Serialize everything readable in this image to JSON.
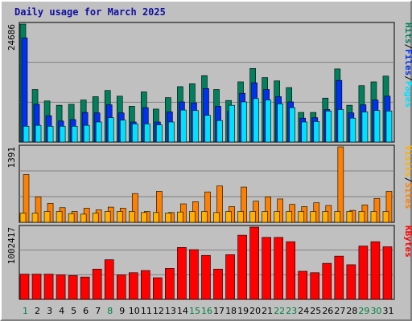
{
  "title": "Daily usage for March 2025",
  "colors": {
    "hits": "#00805c",
    "files": "#0030f0",
    "pages": "#00e0ff",
    "visits": "#ffb000",
    "sites": "#ff8000",
    "kbytes": "#ff0000",
    "weekday_label": "#000000",
    "weekend_label": "#008040",
    "separator": "#000000"
  },
  "chart_data": [
    {
      "type": "bar",
      "max_label": "24686",
      "ylim": [
        0,
        24686
      ],
      "right_labels": [
        {
          "text": "Hits",
          "color_key": "hits"
        },
        {
          "text": "/",
          "color_key": "separator"
        },
        {
          "text": "Files",
          "color_key": "files"
        },
        {
          "text": "/",
          "color_key": "separator"
        },
        {
          "text": "Pages",
          "color_key": "pages"
        }
      ],
      "categories": [
        "1",
        "2",
        "3",
        "4",
        "5",
        "6",
        "7",
        "8",
        "9",
        "10",
        "11",
        "12",
        "13",
        "14",
        "15",
        "16",
        "17",
        "18",
        "19",
        "20",
        "21",
        "22",
        "23",
        "24",
        "25",
        "26",
        "27",
        "28",
        "29",
        "30",
        "31"
      ],
      "series": [
        {
          "name": "Hits",
          "color_key": "hits",
          "values": [
            24686,
            11000,
            8600,
            7700,
            7900,
            8800,
            9500,
            10800,
            9600,
            7500,
            10500,
            6900,
            9300,
            11600,
            12200,
            13900,
            11000,
            8700,
            12600,
            15400,
            13500,
            12800,
            11400,
            6200,
            6200,
            9200,
            15300,
            7700,
            11800,
            12600,
            13800
          ]
        },
        {
          "name": "Files",
          "color_key": "files",
          "values": [
            21800,
            7900,
            5500,
            4400,
            4700,
            6200,
            6100,
            7800,
            6100,
            4200,
            7200,
            4200,
            6300,
            8400,
            8200,
            11200,
            7500,
            6400,
            10200,
            12400,
            11000,
            9500,
            8400,
            5000,
            5100,
            6800,
            12900,
            6100,
            7800,
            8800,
            9600
          ]
        },
        {
          "name": "Pages",
          "color_key": "pages",
          "values": [
            3300,
            3500,
            3300,
            3300,
            3300,
            3500,
            4200,
            5100,
            4600,
            3800,
            3800,
            3600,
            4200,
            6700,
            6600,
            5600,
            4500,
            7700,
            8400,
            9100,
            8800,
            8000,
            7200,
            4200,
            4300,
            6500,
            6800,
            5000,
            6300,
            6600,
            6500
          ]
        }
      ]
    },
    {
      "type": "bar",
      "max_label": "1391",
      "ylim": [
        0,
        1391
      ],
      "right_labels": [
        {
          "text": "Visits",
          "color_key": "visits"
        },
        {
          "text": "/",
          "color_key": "separator"
        },
        {
          "text": "Sites",
          "color_key": "sites"
        }
      ],
      "categories": [
        "1",
        "2",
        "3",
        "4",
        "5",
        "6",
        "7",
        "8",
        "9",
        "10",
        "11",
        "12",
        "13",
        "14",
        "15",
        "16",
        "17",
        "18",
        "19",
        "20",
        "21",
        "22",
        "23",
        "24",
        "25",
        "26",
        "27",
        "28",
        "29",
        "30",
        "31"
      ],
      "series": [
        {
          "name": "Sites",
          "color_key": "sites",
          "values": [
            880,
            470,
            350,
            270,
            200,
            260,
            230,
            280,
            260,
            530,
            200,
            570,
            180,
            340,
            380,
            560,
            670,
            290,
            650,
            390,
            470,
            430,
            330,
            290,
            360,
            310,
            1391,
            220,
            320,
            440,
            570
          ]
        },
        {
          "name": "Visits",
          "color_key": "visits",
          "values": [
            170,
            170,
            200,
            200,
            160,
            150,
            170,
            200,
            200,
            200,
            180,
            180,
            170,
            190,
            200,
            200,
            180,
            200,
            200,
            200,
            200,
            200,
            200,
            200,
            200,
            200,
            200,
            200,
            200,
            200,
            200
          ]
        }
      ]
    },
    {
      "type": "bar",
      "max_label": "1002417",
      "ylim": [
        0,
        1002417
      ],
      "right_labels": [
        {
          "text": "KBytes",
          "color_key": "kbytes"
        }
      ],
      "categories": [
        "1",
        "2",
        "3",
        "4",
        "5",
        "6",
        "7",
        "8",
        "9",
        "10",
        "11",
        "12",
        "13",
        "14",
        "15",
        "16",
        "17",
        "18",
        "19",
        "20",
        "21",
        "22",
        "23",
        "24",
        "25",
        "26",
        "27",
        "28",
        "29",
        "30",
        "31"
      ],
      "series": [
        {
          "name": "KBytes",
          "color_key": "kbytes",
          "values": [
            350000,
            350000,
            350000,
            340000,
            330000,
            310000,
            420000,
            550000,
            340000,
            370000,
            400000,
            300000,
            430000,
            720000,
            690000,
            610000,
            420000,
            620000,
            890000,
            1002417,
            860000,
            860000,
            800000,
            390000,
            370000,
            500000,
            600000,
            480000,
            740000,
            800000,
            730000
          ]
        }
      ]
    }
  ],
  "weekend_days": [
    1,
    8,
    15,
    16,
    22,
    23,
    29,
    30
  ]
}
